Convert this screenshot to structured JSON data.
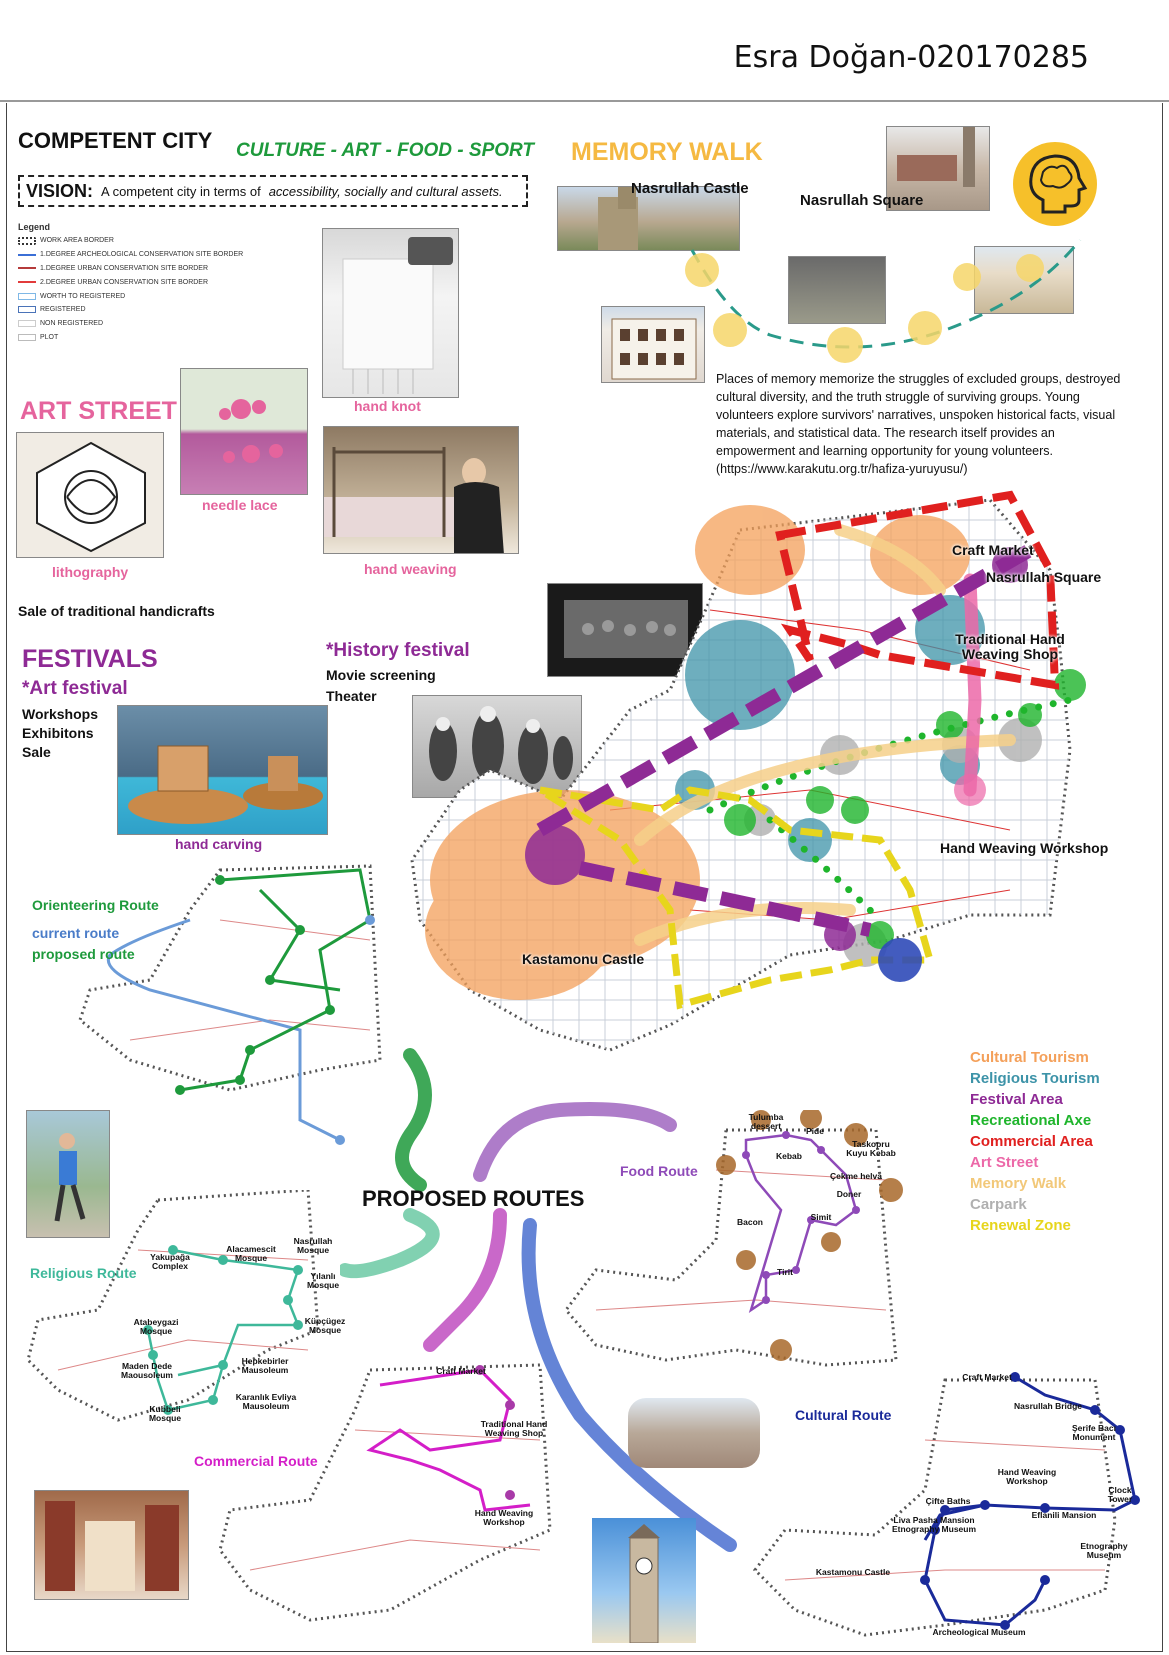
{
  "author": "Esra Doğan-020170285",
  "header": {
    "title": "COMPETENT CITY",
    "subtitle": "CULTURE - ART - FOOD - SPORT",
    "vision_label": "VISION:",
    "vision_text": "A competent city in terms of",
    "vision_emphasis": "accessibility, socially and cultural assets."
  },
  "legend": {
    "title": "Legend",
    "items": [
      {
        "label": "WORK AREA BORDER"
      },
      {
        "label": "1.DEGREE ARCHEOLOGICAL CONSERVATION SITE BORDER",
        "color": "#3b6fd6"
      },
      {
        "label": "1.DEGREE URBAN CONSERVATION SITE BORDER",
        "color": "#b53b3b"
      },
      {
        "label": "2.DEGREE URBAN CONSERVATION SITE BORDER",
        "color": "#e23b3b"
      },
      {
        "label": "WORTH TO REGISTERED",
        "color": "#7fb8e6"
      },
      {
        "label": "REGISTERED",
        "color": "#4a73b8"
      },
      {
        "label": "NON REGISTERED",
        "color": "#cccccc"
      },
      {
        "label": "PLOT",
        "color": "#bbbbbb"
      }
    ]
  },
  "art_street": {
    "title": "ART STREET",
    "hand_knot": "hand knot",
    "needle_lace": "needle lace",
    "lithography": "lithography",
    "hand_weaving": "hand weaving",
    "sale": "Sale of traditional handicrafts"
  },
  "festivals": {
    "title": "FESTIVALS",
    "art_festival": "*Art festival",
    "art_items": [
      "Workshops",
      "Exhibitons",
      "Sale"
    ],
    "hand_carving": "hand carving",
    "history_festival": "*History festival",
    "history_items": [
      "Movie screening",
      "Theater"
    ]
  },
  "memory_walk": {
    "title": "MEMORY WALK",
    "castle": "Nasrullah Castle",
    "square": "Nasrullah Square",
    "text": "Places of memory memorize the struggles of excluded groups, destroyed cultural diversity, and the truth struggle of surviving groups. Young volunteers explore survivors' narratives, unspoken historical facts, visual materials, and statistical data. The research itself provides an empowerment and learning opportunity for young volunteers. (https://www.karakutu.org.tr/hafiza-yuruyusu/)"
  },
  "main_map": {
    "labels": {
      "craft_market": "Craft Market",
      "nasrullah_square": "Nasrullah Square",
      "traditional_shop": "Traditional Hand Weaving Shop",
      "workshop": "Hand Weaving Workshop",
      "castle": "Kastamonu Castle"
    },
    "categories": [
      {
        "label": "Cultural Tourism",
        "color": "#f4a05a"
      },
      {
        "label": "Religious Tourism",
        "color": "#3d93a8"
      },
      {
        "label": "Festival Area",
        "color": "#8e2a95"
      },
      {
        "label": "Recreational Axe",
        "color": "#1fb52c"
      },
      {
        "label": "Commercial Area",
        "color": "#e0201f"
      },
      {
        "label": "Art Street",
        "color": "#ec68a8"
      },
      {
        "label": "Memory Walk",
        "color": "#f2c879"
      },
      {
        "label": "Carpark",
        "color": "#b0b0b0"
      },
      {
        "label": "Renewal Zone",
        "color": "#e7d51c"
      }
    ]
  },
  "routes": {
    "title": "PROPOSED ROUTES",
    "orienteering": {
      "title": "Orienteering Route",
      "current": "current route",
      "proposed": "proposed route"
    },
    "religious": {
      "title": "Religious Route",
      "stops": [
        "Alacamescit Mosque",
        "Yakupağa Complex",
        "Nasrullah Mosque",
        "Yılanlı Mosque",
        "Küpçügez Mosque",
        "Atabeygazi Mosque",
        "Maden Dede Maousoleum",
        "Hepkebirler Mausoleum",
        "Karanlık Evliya Mausoleum",
        "Kubbeli Mosque"
      ]
    },
    "food": {
      "title": "Food Route",
      "stops": [
        "Tulumba dessert",
        "Pide",
        "Taskopru Kuyu Kebab",
        "Kebab",
        "Çekme helva",
        "Doner",
        "Simit",
        "Bacon",
        "Tirit"
      ]
    },
    "commercial": {
      "title": "Commercial Route",
      "stops": [
        "Craft Market",
        "Traditional Hand Weaving Shop",
        "Hand Weaving Workshop"
      ]
    },
    "cultural": {
      "title": "Cultural Route",
      "stops": [
        "Craft Market",
        "Nasrullah Bridge",
        "Şerife Bacı Monument",
        "Clock Tower",
        "Hand Weaving Workshop",
        "Çifte Baths",
        "Eflanili Mansion",
        "Liva Pasha Mansion Etnography Museum",
        "Etnography Museum",
        "Kastamonu Castle",
        "Archeological Museum"
      ]
    }
  }
}
